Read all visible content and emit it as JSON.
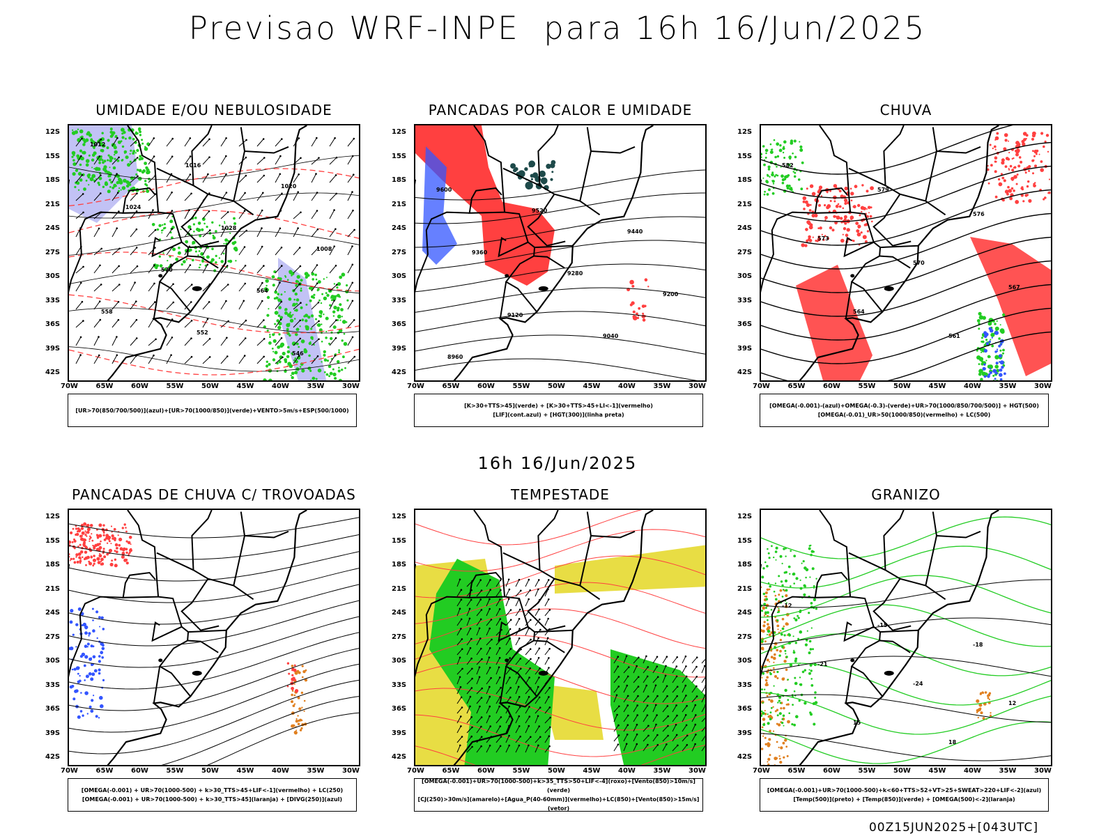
{
  "title": "Previsao WRF-INPE  para 16h 16/Jun/2025",
  "mid_title": "16h 16/Jun/2025",
  "footer": "00Z15JUN2025+[043UTC]",
  "colors": {
    "red": "#ff4040",
    "green": "#22cc22",
    "blue": "#3355ff",
    "lavender": "#9999ee",
    "yellow": "#e6d930",
    "teal": "#1e4a4a",
    "orange": "#e08020"
  },
  "panels": [
    {
      "title": "UMIDADE E/OU NEBULOSIDADE",
      "legend": [
        "[UR>70(850/700/500)](azul)+[UR>70(1000/850)](verde)+VENTO>5m/s+ESP(500/1000)"
      ],
      "contour_labels": [
        "1012",
        "1016",
        "1020",
        "1024",
        "1028",
        "1008",
        "570",
        "564",
        "558",
        "552",
        "546"
      ]
    },
    {
      "title": "PANCADAS POR CALOR E UMIDADE",
      "legend": [
        "[K>30+TTS>45](verde) + [K>30+TTS>45+LI<-1](vermelho)",
        "[LIF](cont.azul) + [HGT(300)](linha preta)"
      ],
      "contour_labels": [
        "9600",
        "9520",
        "9440",
        "9360",
        "9280",
        "9200",
        "9120",
        "9040",
        "8960"
      ]
    },
    {
      "title": "CHUVA",
      "legend": [
        "[OMEGA(-0.001)-(azul)+OMEGA(-0.3)-(verde)+UR>70(1000/850/700/500)] + HGT(500)",
        "[OMEGA(-0.01)_UR>50(1000/850)(vermelho) + LC(500)"
      ],
      "contour_labels": [
        "582",
        "579",
        "576",
        "573",
        "570",
        "567",
        "564",
        "561"
      ]
    },
    {
      "title": "PANCADAS DE CHUVA C/ TROVOADAS",
      "legend": [
        "[OMEGA(-0.001) + UR>70(1000-500) + k>30_TTS>45+LIF<-1](vermelho) + LC(250)",
        "[OMEGA(-0.001) + UR>70(1000-500) + k>30_TTS>45](laranja) + [DIVG(250)](azul)"
      ],
      "contour_labels": []
    },
    {
      "title": "TEMPESTADE",
      "legend": [
        "[OMEGA(-0.001)+UR>70(1000-500)+k>35_TTS>50+LIF<-4](roxo)+[Vento(850)>10m/s](verde)",
        "[CJ(250)>30m/s](amarelo)+[Agua_P(40-60mm)](vermelho)+LC(850)+[Vento(850)>15m/s](vetor)"
      ],
      "contour_labels": []
    },
    {
      "title": "GRANIZO",
      "legend": [
        "[OMEGA(-0.001)+UR>70(1000-500)+k<60+TTS>52+VT>25+SWEAT>220+LIF<-2](azul)",
        "[Temp(500)](preto) + [Temp(850)](verde) + [OMEGA(500)<-2](laranja)"
      ],
      "contour_labels": [
        "-12",
        "-15",
        "-18",
        "-21",
        "-24",
        "12",
        "15",
        "18"
      ]
    }
  ],
  "axes": {
    "lat_ticks": [
      "12S",
      "15S",
      "18S",
      "21S",
      "24S",
      "27S",
      "30S",
      "33S",
      "36S",
      "39S",
      "42S"
    ],
    "lon_ticks": [
      "70W",
      "65W",
      "60W",
      "55W",
      "50W",
      "45W",
      "40W",
      "35W",
      "30W"
    ],
    "lat_range": [
      -12,
      -42
    ],
    "lon_range": [
      -70,
      -30
    ]
  },
  "chart_data": {
    "type": "map-panels",
    "title": "Previsao WRF-INPE  para 16h 16/Jun/2025",
    "valid_time": "16h 16/Jun/2025",
    "run": "00Z15JUN2025+[043UTC]",
    "grid": "6 map panels, South America 70W-30W, 12S-42S"
  }
}
